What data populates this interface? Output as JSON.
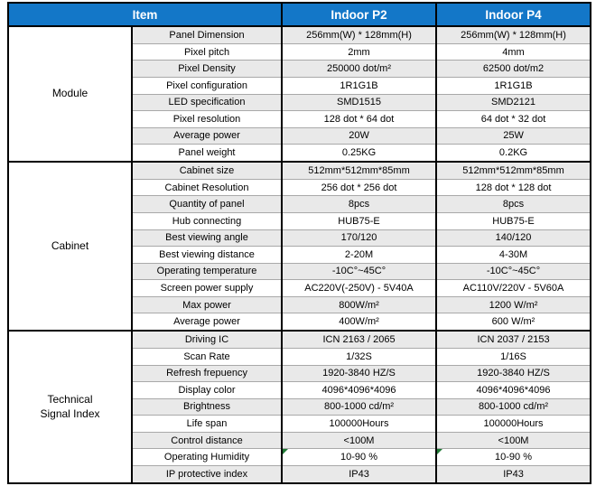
{
  "colors": {
    "header_bg": "#1377C8",
    "header_text": "#FFFFFF",
    "row_stripe": "#E9E9E9",
    "grid_dark": "#000000",
    "grid_light": "#A9A9A9",
    "flag_green": "#217A36"
  },
  "table": {
    "header": {
      "item": "Item",
      "p2": "Indoor P2",
      "p4": "Indoor P4"
    },
    "groups": [
      {
        "label": "Module",
        "label_lines": [
          "Module"
        ],
        "rows": [
          {
            "item": "Panel Dimension",
            "p2": "256mm(W) * 128mm(H)",
            "p4": "256mm(W) * 128mm(H)"
          },
          {
            "item": "Pixel pitch",
            "p2": "2mm",
            "p4": "4mm"
          },
          {
            "item": "Pixel Density",
            "p2": "250000 dot/m²",
            "p4": "62500 dot/m2"
          },
          {
            "item": "Pixel configuration",
            "p2": "1R1G1B",
            "p4": "1R1G1B"
          },
          {
            "item": "LED specification",
            "p2": "SMD1515",
            "p4": "SMD2121"
          },
          {
            "item": "Pixel resolution",
            "p2": "128 dot * 64 dot",
            "p4": "64 dot * 32 dot"
          },
          {
            "item": "Average power",
            "p2": "20W",
            "p4": "25W"
          },
          {
            "item": "Panel weight",
            "p2": "0.25KG",
            "p4": "0.2KG"
          }
        ]
      },
      {
        "label": "Cabinet",
        "label_lines": [
          "Cabinet"
        ],
        "rows": [
          {
            "item": "Cabinet size",
            "p2": "512mm*512mm*85mm",
            "p4": "512mm*512mm*85mm"
          },
          {
            "item": "Cabinet Resolution",
            "p2": "256 dot * 256 dot",
            "p4": "128 dot * 128 dot"
          },
          {
            "item": "Quantity of panel",
            "p2": "8pcs",
            "p4": "8pcs"
          },
          {
            "item": "Hub connecting",
            "p2": "HUB75-E",
            "p4": "HUB75-E"
          },
          {
            "item": "Best viewing angle",
            "p2": "170/120",
            "p4": "140/120"
          },
          {
            "item": "Best viewing distance",
            "p2": "2-20M",
            "p4": "4-30M"
          },
          {
            "item": "Operating temperature",
            "p2": "-10C°~45C°",
            "p4": "-10C°~45C°"
          },
          {
            "item": "Screen power supply",
            "p2": "AC220V(-250V) - 5V40A",
            "p4": "AC110V/220V - 5V60A"
          },
          {
            "item": "Max power",
            "p2": "800W/m²",
            "p4": "1200 W/m²"
          },
          {
            "item": "Average power",
            "p2": "400W/m²",
            "p4": "600 W/m²"
          }
        ]
      },
      {
        "label": "Technical Signal Index",
        "label_lines": [
          "Technical",
          "Signal Index"
        ],
        "rows": [
          {
            "item": "Driving IC",
            "p2": "ICN 2163 / 2065",
            "p4": "ICN 2037 / 2153"
          },
          {
            "item": "Scan Rate",
            "p2": "1/32S",
            "p4": "1/16S"
          },
          {
            "item": "Refresh frepuency",
            "p2": "1920-3840 HZ/S",
            "p4": "1920-3840 HZ/S"
          },
          {
            "item": "Display color",
            "p2": "4096*4096*4096",
            "p4": "4096*4096*4096"
          },
          {
            "item": "Brightness",
            "p2": "800-1000 cd/m²",
            "p4": "800-1000 cd/m²"
          },
          {
            "item": "Life span",
            "p2": "100000Hours",
            "p4": "100000Hours"
          },
          {
            "item": "Control distance",
            "p2": "<100M",
            "p4": "<100M"
          },
          {
            "item": "Operating Humidity",
            "p2": "10-90 %",
            "p4": "10-90 %",
            "p2_flag": true,
            "p4_flag": true,
            "flag_icon": "green-corner-triangle"
          },
          {
            "item": "IP protective index",
            "p2": "IP43",
            "p4": "IP43"
          }
        ]
      }
    ]
  }
}
